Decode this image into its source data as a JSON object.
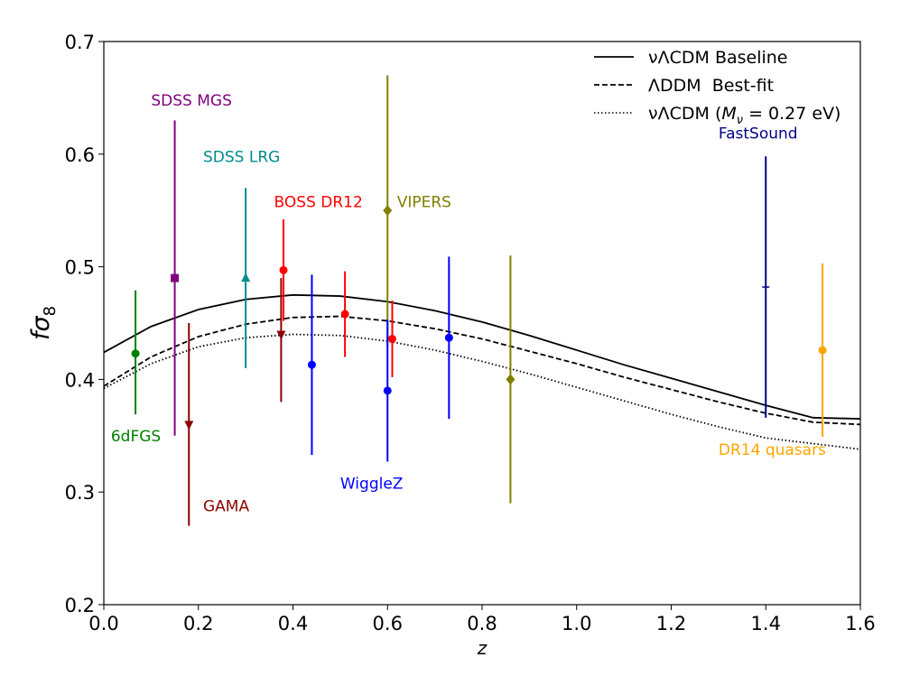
{
  "chart_data": {
    "type": "scatter",
    "title": "",
    "xlabel": "z",
    "ylabel": "fσ",
    "ylabel_sub": "8",
    "xlim": [
      0.0,
      1.6
    ],
    "ylim": [
      0.2,
      0.7
    ],
    "xticks": [
      0.0,
      0.2,
      0.4,
      0.6,
      0.8,
      1.0,
      1.2,
      1.4,
      1.6
    ],
    "xtick_labels": [
      "0.0",
      "0.2",
      "0.4",
      "0.6",
      "0.8",
      "1.0",
      "1.2",
      "1.4",
      "1.6"
    ],
    "yticks": [
      0.2,
      0.3,
      0.4,
      0.5,
      0.6,
      0.7
    ],
    "ytick_labels": [
      "0.2",
      "0.3",
      "0.4",
      "0.5",
      "0.6",
      "0.7"
    ],
    "grid": false,
    "legend_position": "top-right",
    "curves": [
      {
        "name": "νΛCDM Baseline",
        "style": "solid",
        "x": [
          0.0,
          0.1,
          0.2,
          0.3,
          0.4,
          0.5,
          0.6,
          0.7,
          0.8,
          0.9,
          1.0,
          1.1,
          1.2,
          1.3,
          1.4,
          1.5,
          1.6
        ],
        "y": [
          0.424,
          0.447,
          0.462,
          0.471,
          0.475,
          0.474,
          0.469,
          0.461,
          0.451,
          0.439,
          0.426,
          0.413,
          0.401,
          0.389,
          0.377,
          0.366,
          0.365
        ]
      },
      {
        "name": "ΛDDM  Best-fit",
        "style": "dashed",
        "x": [
          0.0,
          0.1,
          0.2,
          0.3,
          0.4,
          0.5,
          0.6,
          0.7,
          0.8,
          0.9,
          1.0,
          1.1,
          1.2,
          1.3,
          1.4,
          1.5,
          1.6
        ],
        "y": [
          0.394,
          0.42,
          0.438,
          0.449,
          0.455,
          0.456,
          0.452,
          0.445,
          0.436,
          0.425,
          0.414,
          0.402,
          0.391,
          0.38,
          0.37,
          0.362,
          0.36
        ]
      },
      {
        "name": "νΛCDM (",
        "name_math": "M",
        "name_sub": "ν",
        "name_tail": " = 0.27 eV)",
        "style": "dotted",
        "x": [
          0.0,
          0.1,
          0.2,
          0.3,
          0.4,
          0.5,
          0.6,
          0.7,
          0.8,
          0.9,
          1.0,
          1.1,
          1.2,
          1.3,
          1.4,
          1.5,
          1.6
        ],
        "y": [
          0.392,
          0.414,
          0.429,
          0.437,
          0.44,
          0.439,
          0.434,
          0.426,
          0.416,
          0.405,
          0.393,
          0.381,
          0.369,
          0.358,
          0.348,
          0.343,
          0.338
        ]
      }
    ],
    "surveys": [
      {
        "name": "6dFGS",
        "color": "#008000",
        "label_anchor": [
          0.015,
          0.345
        ],
        "points": [
          {
            "x": 0.067,
            "y": 0.423,
            "lo": 0.369,
            "hi": 0.479,
            "marker": "circle"
          }
        ]
      },
      {
        "name": "SDSS MGS",
        "color": "#800080",
        "label_anchor": [
          0.1,
          0.643
        ],
        "points": [
          {
            "x": 0.15,
            "y": 0.49,
            "lo": 0.35,
            "hi": 0.63,
            "marker": "square"
          }
        ]
      },
      {
        "name": "GAMA",
        "color": "#8b0000",
        "label_anchor": [
          0.21,
          0.283
        ],
        "points": [
          {
            "x": 0.18,
            "y": 0.36,
            "lo": 0.27,
            "hi": 0.45,
            "marker": "triangle-down"
          }
        ]
      },
      {
        "name": "SDSS LRG",
        "color": "#008b8b",
        "label_anchor": [
          0.21,
          0.593
        ],
        "points": [
          {
            "x": 0.3,
            "y": 0.49,
            "lo": 0.41,
            "hi": 0.57,
            "marker": "triangle-up"
          }
        ]
      },
      {
        "name": "BOSS DR12",
        "color": "#ff0000",
        "label_anchor": [
          0.36,
          0.553
        ],
        "points": [
          {
            "x": 0.38,
            "y": 0.497,
            "lo": 0.452,
            "hi": 0.542,
            "marker": "circle"
          },
          {
            "x": 0.51,
            "y": 0.458,
            "lo": 0.42,
            "hi": 0.496,
            "marker": "circle"
          },
          {
            "x": 0.61,
            "y": 0.436,
            "lo": 0.402,
            "hi": 0.47,
            "marker": "circle"
          }
        ]
      },
      {
        "name": "VIPERS",
        "color": "#808000",
        "label_anchor": [
          0.62,
          0.553
        ],
        "points": [
          {
            "x": 0.6,
            "y": 0.55,
            "lo": 0.43,
            "hi": 0.67,
            "marker": "diamond"
          },
          {
            "x": 0.86,
            "y": 0.4,
            "lo": 0.29,
            "hi": 0.51,
            "marker": "diamond"
          }
        ]
      },
      {
        "name": "WiggleZ",
        "color": "#0000ff",
        "label_anchor": [
          0.5,
          0.303
        ],
        "points": [
          {
            "x": 0.44,
            "y": 0.413,
            "lo": 0.333,
            "hi": 0.493,
            "marker": "circle"
          },
          {
            "x": 0.6,
            "y": 0.39,
            "lo": 0.327,
            "hi": 0.453,
            "marker": "circle"
          },
          {
            "x": 0.73,
            "y": 0.437,
            "lo": 0.365,
            "hi": 0.509,
            "marker": "circle"
          }
        ]
      },
      {
        "name": "FastSound",
        "color": "#00008b",
        "label_anchor": [
          1.3,
          0.614
        ],
        "points": [
          {
            "x": 1.4,
            "y": 0.482,
            "lo": 0.366,
            "hi": 0.598,
            "marker": "hline"
          }
        ]
      },
      {
        "name": "DR14 quasars",
        "color": "#ffa500",
        "label_anchor": [
          1.3,
          0.333
        ],
        "points": [
          {
            "x": 1.52,
            "y": 0.426,
            "lo": 0.349,
            "hi": 0.503,
            "marker": "circle"
          }
        ]
      },
      {
        "name": "",
        "color": "#8b0000",
        "label_anchor": null,
        "points": [
          {
            "x": 0.375,
            "y": 0.44,
            "lo": 0.38,
            "hi": 0.49,
            "marker": "triangle-down"
          }
        ]
      }
    ]
  }
}
